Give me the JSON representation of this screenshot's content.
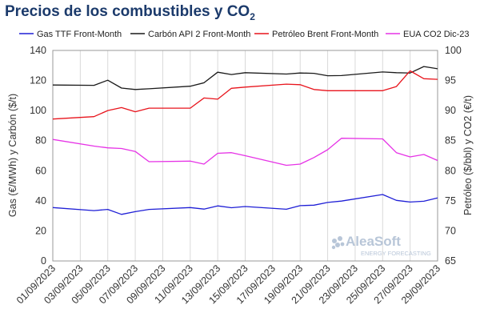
{
  "title_main": "Precios de los combustibles y CO",
  "title_sub": "2",
  "watermark": {
    "brand": "AleaSoft",
    "tagline": "ENERGY FORECASTING"
  },
  "chart_data": {
    "type": "line",
    "title": "Precios de los combustibles y CO2",
    "y_left_label": "Gas (€/MWh) y Carbón ($/t)",
    "y_right_label": "Petróleo ($/bbl) y CO2 (€/t)",
    "y_left_range": [
      0,
      140
    ],
    "y_left_ticks": [
      "0",
      "20",
      "40",
      "60",
      "80",
      "100",
      "120",
      "140"
    ],
    "y_right_range": [
      65,
      100
    ],
    "y_right_ticks": [
      "65",
      "70",
      "75",
      "80",
      "85",
      "90",
      "95",
      "100"
    ],
    "grid": "vertical",
    "legend_position": "top",
    "x": [
      "01/09/2023",
      "04/09/2023",
      "05/09/2023",
      "06/09/2023",
      "07/09/2023",
      "08/09/2023",
      "11/09/2023",
      "12/09/2023",
      "13/09/2023",
      "14/09/2023",
      "15/09/2023",
      "18/09/2023",
      "19/09/2023",
      "20/09/2023",
      "21/09/2023",
      "22/09/2023",
      "25/09/2023",
      "26/09/2023",
      "27/09/2023",
      "28/09/2023",
      "29/09/2023"
    ],
    "x_tick_labels": [
      "01/09/2023",
      "03/09/2023",
      "05/09/2023",
      "07/09/2023",
      "09/09/2023",
      "11/09/2023",
      "13/09/2023",
      "15/09/2023",
      "17/09/2023",
      "19/09/2023",
      "21/09/2023",
      "23/09/2023",
      "25/09/2023",
      "27/09/2023",
      "29/09/2023"
    ],
    "series": [
      {
        "name": "Gas TTF Front-Month",
        "axis": "left",
        "color": "#1f1fd6",
        "values": [
          35.5,
          33.5,
          34.3,
          31.0,
          32.8,
          34.3,
          35.5,
          34.5,
          36.6,
          35.4,
          36.2,
          34.4,
          36.8,
          37.1,
          38.9,
          39.8,
          44.2,
          40.3,
          39.2,
          39.7,
          41.9
        ]
      },
      {
        "name": "Carbón API 2 Front-Month",
        "axis": "left",
        "color": "#1a1a1a",
        "values": [
          117.0,
          116.8,
          120.2,
          115.0,
          114.0,
          114.5,
          116.2,
          118.5,
          125.5,
          124.0,
          125.2,
          124.3,
          125.0,
          124.8,
          123.2,
          123.3,
          125.7,
          125.2,
          125.0,
          129.3,
          127.8
        ]
      },
      {
        "name": "Petróleo Brent Front-Month",
        "axis": "right",
        "color": "#e8141c",
        "values": [
          88.6,
          89.0,
          90.0,
          90.5,
          89.8,
          90.4,
          90.4,
          92.1,
          91.9,
          93.7,
          93.9,
          94.4,
          94.3,
          93.5,
          93.3,
          93.3,
          93.3,
          94.0,
          96.6,
          95.3,
          95.2
        ]
      },
      {
        "name": "EUA CO2 Dic-23",
        "axis": "right",
        "color": "#e633e6",
        "values": [
          85.2,
          84.1,
          83.8,
          83.7,
          83.2,
          81.5,
          81.6,
          81.1,
          82.9,
          83.0,
          82.5,
          80.9,
          81.1,
          82.2,
          83.5,
          85.4,
          85.3,
          83.0,
          82.3,
          82.7,
          81.7
        ]
      }
    ]
  }
}
